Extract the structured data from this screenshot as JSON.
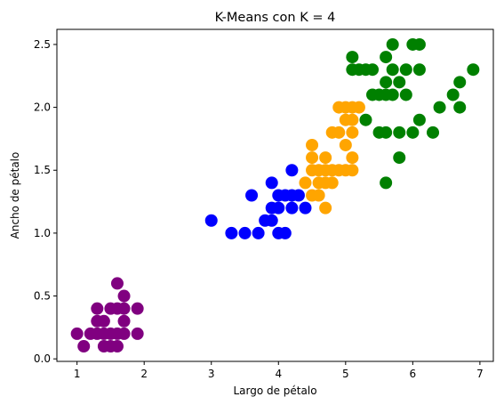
{
  "chart_data": {
    "type": "scatter",
    "title": "K-Means con K = 4",
    "xlabel": "Largo de pétalo",
    "ylabel": "Ancho de pétalo",
    "xlim": [
      0.7,
      7.2
    ],
    "ylim": [
      -0.02,
      2.62
    ],
    "xticks": [
      "1",
      "2",
      "3",
      "4",
      "5",
      "6",
      "7"
    ],
    "xtick_values": [
      1,
      2,
      3,
      4,
      5,
      6,
      7
    ],
    "yticks": [
      "0.0",
      "0.5",
      "1.0",
      "1.5",
      "2.0",
      "2.5"
    ],
    "ytick_values": [
      0.0,
      0.5,
      1.0,
      1.5,
      2.0,
      2.5
    ],
    "grid": false,
    "series": [
      {
        "color": "#800080",
        "points": [
          [
            1.0,
            0.2
          ],
          [
            1.1,
            0.1
          ],
          [
            1.2,
            0.2
          ],
          [
            1.3,
            0.2
          ],
          [
            1.3,
            0.3
          ],
          [
            1.3,
            0.4
          ],
          [
            1.4,
            0.1
          ],
          [
            1.4,
            0.2
          ],
          [
            1.4,
            0.3
          ],
          [
            1.5,
            0.1
          ],
          [
            1.5,
            0.2
          ],
          [
            1.5,
            0.4
          ],
          [
            1.6,
            0.2
          ],
          [
            1.6,
            0.4
          ],
          [
            1.6,
            0.6
          ],
          [
            1.6,
            0.1
          ],
          [
            1.7,
            0.2
          ],
          [
            1.7,
            0.3
          ],
          [
            1.7,
            0.4
          ],
          [
            1.7,
            0.5
          ],
          [
            1.9,
            0.2
          ],
          [
            1.9,
            0.4
          ]
        ]
      },
      {
        "color": "#0000ff",
        "points": [
          [
            3.0,
            1.1
          ],
          [
            3.3,
            1.0
          ],
          [
            3.5,
            1.0
          ],
          [
            3.6,
            1.3
          ],
          [
            3.7,
            1.0
          ],
          [
            3.8,
            1.1
          ],
          [
            3.9,
            1.1
          ],
          [
            3.9,
            1.2
          ],
          [
            3.9,
            1.4
          ],
          [
            4.0,
            1.0
          ],
          [
            4.0,
            1.2
          ],
          [
            4.0,
            1.3
          ],
          [
            4.1,
            1.0
          ],
          [
            4.1,
            1.3
          ],
          [
            4.2,
            1.2
          ],
          [
            4.2,
            1.3
          ],
          [
            4.2,
            1.5
          ],
          [
            4.3,
            1.3
          ],
          [
            4.4,
            1.2
          ]
        ]
      },
      {
        "color": "#ffa500",
        "points": [
          [
            4.4,
            1.4
          ],
          [
            4.5,
            1.3
          ],
          [
            4.5,
            1.5
          ],
          [
            4.5,
            1.6
          ],
          [
            4.5,
            1.7
          ],
          [
            4.6,
            1.3
          ],
          [
            4.6,
            1.4
          ],
          [
            4.6,
            1.5
          ],
          [
            4.7,
            1.2
          ],
          [
            4.7,
            1.4
          ],
          [
            4.7,
            1.5
          ],
          [
            4.7,
            1.6
          ],
          [
            4.8,
            1.4
          ],
          [
            4.8,
            1.8
          ],
          [
            4.9,
            1.5
          ],
          [
            4.9,
            1.8
          ],
          [
            5.0,
            1.5
          ],
          [
            5.0,
            1.7
          ],
          [
            5.0,
            2.0
          ],
          [
            5.0,
            1.9
          ],
          [
            5.1,
            1.5
          ],
          [
            5.1,
            1.6
          ],
          [
            5.1,
            1.9
          ],
          [
            5.1,
            2.0
          ],
          [
            5.2,
            2.0
          ],
          [
            4.8,
            1.5
          ],
          [
            4.9,
            2.0
          ],
          [
            5.1,
            1.8
          ]
        ]
      },
      {
        "color": "#008000",
        "points": [
          [
            5.1,
            2.4
          ],
          [
            5.1,
            2.3
          ],
          [
            5.2,
            2.3
          ],
          [
            5.3,
            1.9
          ],
          [
            5.3,
            2.3
          ],
          [
            5.4,
            2.1
          ],
          [
            5.4,
            2.3
          ],
          [
            5.5,
            1.8
          ],
          [
            5.5,
            2.1
          ],
          [
            5.6,
            1.4
          ],
          [
            5.6,
            1.8
          ],
          [
            5.6,
            2.1
          ],
          [
            5.6,
            2.2
          ],
          [
            5.6,
            2.4
          ],
          [
            5.7,
            2.1
          ],
          [
            5.7,
            2.3
          ],
          [
            5.7,
            2.5
          ],
          [
            5.8,
            1.6
          ],
          [
            5.8,
            1.8
          ],
          [
            5.8,
            2.2
          ],
          [
            5.9,
            2.1
          ],
          [
            5.9,
            2.3
          ],
          [
            6.0,
            1.8
          ],
          [
            6.0,
            2.5
          ],
          [
            6.1,
            1.9
          ],
          [
            6.1,
            2.3
          ],
          [
            6.1,
            2.5
          ],
          [
            6.3,
            1.8
          ],
          [
            6.4,
            2.0
          ],
          [
            6.6,
            2.1
          ],
          [
            6.7,
            2.0
          ],
          [
            6.7,
            2.2
          ],
          [
            6.9,
            2.3
          ]
        ]
      }
    ]
  }
}
